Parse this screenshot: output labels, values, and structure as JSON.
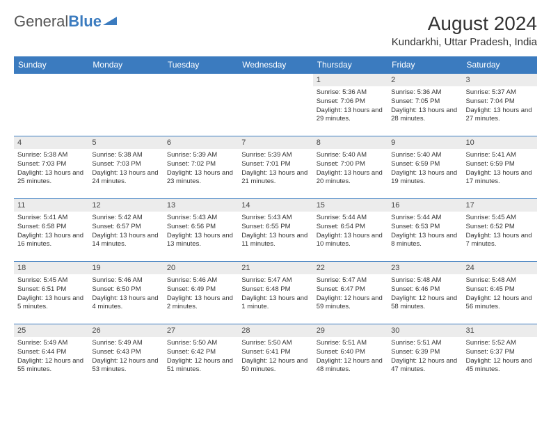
{
  "logo": {
    "text1": "General",
    "text2": "Blue"
  },
  "title": "August 2024",
  "location": "Kundarkhi, Uttar Pradesh, India",
  "colors": {
    "header_bg": "#3b7bbf",
    "header_text": "#ffffff",
    "daynum_bg": "#ececec",
    "border": "#3b7bbf",
    "text": "#333333"
  },
  "weekdays": [
    "Sunday",
    "Monday",
    "Tuesday",
    "Wednesday",
    "Thursday",
    "Friday",
    "Saturday"
  ],
  "weeks": [
    [
      null,
      null,
      null,
      null,
      {
        "n": "1",
        "sunrise": "5:36 AM",
        "sunset": "7:06 PM",
        "daylight": "13 hours and 29 minutes."
      },
      {
        "n": "2",
        "sunrise": "5:36 AM",
        "sunset": "7:05 PM",
        "daylight": "13 hours and 28 minutes."
      },
      {
        "n": "3",
        "sunrise": "5:37 AM",
        "sunset": "7:04 PM",
        "daylight": "13 hours and 27 minutes."
      }
    ],
    [
      {
        "n": "4",
        "sunrise": "5:38 AM",
        "sunset": "7:03 PM",
        "daylight": "13 hours and 25 minutes."
      },
      {
        "n": "5",
        "sunrise": "5:38 AM",
        "sunset": "7:03 PM",
        "daylight": "13 hours and 24 minutes."
      },
      {
        "n": "6",
        "sunrise": "5:39 AM",
        "sunset": "7:02 PM",
        "daylight": "13 hours and 23 minutes."
      },
      {
        "n": "7",
        "sunrise": "5:39 AM",
        "sunset": "7:01 PM",
        "daylight": "13 hours and 21 minutes."
      },
      {
        "n": "8",
        "sunrise": "5:40 AM",
        "sunset": "7:00 PM",
        "daylight": "13 hours and 20 minutes."
      },
      {
        "n": "9",
        "sunrise": "5:40 AM",
        "sunset": "6:59 PM",
        "daylight": "13 hours and 19 minutes."
      },
      {
        "n": "10",
        "sunrise": "5:41 AM",
        "sunset": "6:59 PM",
        "daylight": "13 hours and 17 minutes."
      }
    ],
    [
      {
        "n": "11",
        "sunrise": "5:41 AM",
        "sunset": "6:58 PM",
        "daylight": "13 hours and 16 minutes."
      },
      {
        "n": "12",
        "sunrise": "5:42 AM",
        "sunset": "6:57 PM",
        "daylight": "13 hours and 14 minutes."
      },
      {
        "n": "13",
        "sunrise": "5:43 AM",
        "sunset": "6:56 PM",
        "daylight": "13 hours and 13 minutes."
      },
      {
        "n": "14",
        "sunrise": "5:43 AM",
        "sunset": "6:55 PM",
        "daylight": "13 hours and 11 minutes."
      },
      {
        "n": "15",
        "sunrise": "5:44 AM",
        "sunset": "6:54 PM",
        "daylight": "13 hours and 10 minutes."
      },
      {
        "n": "16",
        "sunrise": "5:44 AM",
        "sunset": "6:53 PM",
        "daylight": "13 hours and 8 minutes."
      },
      {
        "n": "17",
        "sunrise": "5:45 AM",
        "sunset": "6:52 PM",
        "daylight": "13 hours and 7 minutes."
      }
    ],
    [
      {
        "n": "18",
        "sunrise": "5:45 AM",
        "sunset": "6:51 PM",
        "daylight": "13 hours and 5 minutes."
      },
      {
        "n": "19",
        "sunrise": "5:46 AM",
        "sunset": "6:50 PM",
        "daylight": "13 hours and 4 minutes."
      },
      {
        "n": "20",
        "sunrise": "5:46 AM",
        "sunset": "6:49 PM",
        "daylight": "13 hours and 2 minutes."
      },
      {
        "n": "21",
        "sunrise": "5:47 AM",
        "sunset": "6:48 PM",
        "daylight": "13 hours and 1 minute."
      },
      {
        "n": "22",
        "sunrise": "5:47 AM",
        "sunset": "6:47 PM",
        "daylight": "12 hours and 59 minutes."
      },
      {
        "n": "23",
        "sunrise": "5:48 AM",
        "sunset": "6:46 PM",
        "daylight": "12 hours and 58 minutes."
      },
      {
        "n": "24",
        "sunrise": "5:48 AM",
        "sunset": "6:45 PM",
        "daylight": "12 hours and 56 minutes."
      }
    ],
    [
      {
        "n": "25",
        "sunrise": "5:49 AM",
        "sunset": "6:44 PM",
        "daylight": "12 hours and 55 minutes."
      },
      {
        "n": "26",
        "sunrise": "5:49 AM",
        "sunset": "6:43 PM",
        "daylight": "12 hours and 53 minutes."
      },
      {
        "n": "27",
        "sunrise": "5:50 AM",
        "sunset": "6:42 PM",
        "daylight": "12 hours and 51 minutes."
      },
      {
        "n": "28",
        "sunrise": "5:50 AM",
        "sunset": "6:41 PM",
        "daylight": "12 hours and 50 minutes."
      },
      {
        "n": "29",
        "sunrise": "5:51 AM",
        "sunset": "6:40 PM",
        "daylight": "12 hours and 48 minutes."
      },
      {
        "n": "30",
        "sunrise": "5:51 AM",
        "sunset": "6:39 PM",
        "daylight": "12 hours and 47 minutes."
      },
      {
        "n": "31",
        "sunrise": "5:52 AM",
        "sunset": "6:37 PM",
        "daylight": "12 hours and 45 minutes."
      }
    ]
  ]
}
